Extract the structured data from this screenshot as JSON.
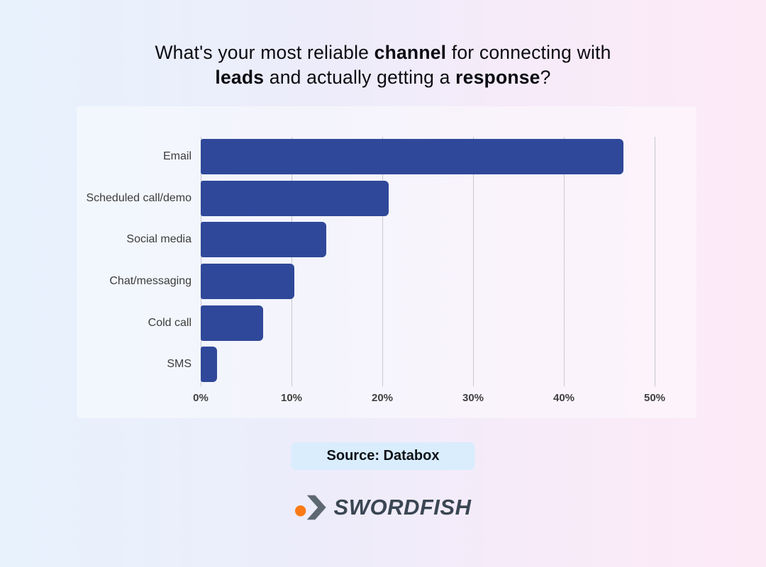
{
  "page": {
    "background_left": "#e7f2fd",
    "background_right": "#fdeaf7",
    "panel_overlay": "rgba(255,255,255,0.42)"
  },
  "title": {
    "full_text": "What's your most reliable channel for connecting with leads and actually getting a response?",
    "lines": [
      [
        {
          "text": "What's your most reliable ",
          "bold": false
        },
        {
          "text": "channel",
          "bold": true
        },
        {
          "text": " for connecting with",
          "bold": false
        }
      ],
      [
        {
          "text": "leads",
          "bold": true
        },
        {
          "text": " and actually getting a ",
          "bold": false
        },
        {
          "text": "response",
          "bold": true
        },
        {
          "text": "?",
          "bold": false
        }
      ]
    ]
  },
  "chart_data": {
    "type": "bar",
    "orientation": "horizontal",
    "title": "",
    "xlabel": "",
    "ylabel": "",
    "categories": [
      "Email",
      "Scheduled call/demo",
      "Social media",
      "Chat/messaging",
      "Cold call",
      "SMS"
    ],
    "values": [
      46.6,
      20.7,
      13.8,
      10.3,
      6.9,
      1.8
    ],
    "unit": "%",
    "xlim": [
      0,
      50
    ],
    "xticks": [
      0,
      10,
      20,
      30,
      40,
      50
    ],
    "xtick_labels": [
      "0%",
      "10%",
      "20%",
      "30%",
      "40%",
      "50%"
    ],
    "grid": true,
    "legend": false,
    "bar_color": "#2f4899",
    "gridline_color": "#c8c8cf",
    "label_color": "#3c3c3c"
  },
  "source_badge": {
    "label": "Source: Databox",
    "background": "#d9edfd"
  },
  "logo": {
    "text": "SWORDFISH",
    "dot_color": "#fb7a15",
    "chevron_color": "#5d6872",
    "text_color": "#3a4653"
  }
}
